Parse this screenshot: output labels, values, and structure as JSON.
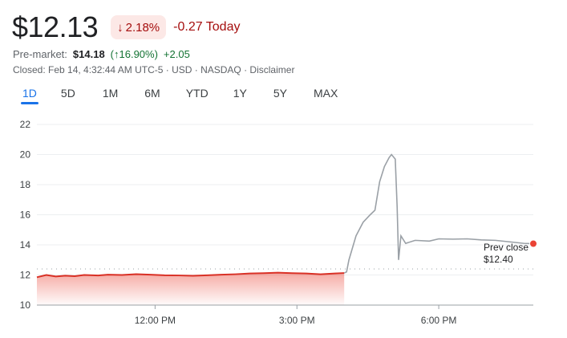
{
  "quote": {
    "price": "$12.13",
    "change_percent": "2.18%",
    "change_direction_icon": "arrow-down-icon",
    "today_change": "-0.27 Today",
    "premarket_label": "Pre-market:",
    "premarket_price": "$14.18",
    "premarket_percent": "(↑16.90%)",
    "premarket_change": "+2.05",
    "closed_info": "Closed: Feb 14, 4:32:44 AM UTC-5 · USD · NASDAQ · Disclaimer",
    "colors": {
      "down": "#a50e0e",
      "up": "#137333",
      "accent": "#1a73e8"
    }
  },
  "tabs": [
    {
      "label": "1D",
      "active": true
    },
    {
      "label": "5D"
    },
    {
      "label": "1M"
    },
    {
      "label": "6M"
    },
    {
      "label": "YTD"
    },
    {
      "label": "1Y"
    },
    {
      "label": "5Y"
    },
    {
      "label": "MAX"
    }
  ],
  "chart_data": {
    "type": "line",
    "ylim": [
      10,
      22
    ],
    "yticks": [
      "10",
      "12",
      "14",
      "16",
      "18",
      "20",
      "22"
    ],
    "xticks": [
      {
        "label": "12:00 PM",
        "hour": 12
      },
      {
        "label": "3:00 PM",
        "hour": 15
      },
      {
        "label": "6:00 PM",
        "hour": 18
      }
    ],
    "x_range_hours": [
      9.5,
      20
    ],
    "prev_close": {
      "label": "Prev close",
      "value": "$12.40",
      "y": 12.4
    },
    "series": [
      {
        "segment": "regular",
        "color": "#d93025",
        "points": [
          [
            9.5,
            11.85
          ],
          [
            9.7,
            12.0
          ],
          [
            9.9,
            11.9
          ],
          [
            10.1,
            11.95
          ],
          [
            10.3,
            11.92
          ],
          [
            10.5,
            12.0
          ],
          [
            10.8,
            11.97
          ],
          [
            11.0,
            12.02
          ],
          [
            11.3,
            12.0
          ],
          [
            11.6,
            12.05
          ],
          [
            11.9,
            12.02
          ],
          [
            12.2,
            11.98
          ],
          [
            12.5,
            11.97
          ],
          [
            12.8,
            11.95
          ],
          [
            13.1,
            11.98
          ],
          [
            13.4,
            12.02
          ],
          [
            13.7,
            12.05
          ],
          [
            14.0,
            12.1
          ],
          [
            14.3,
            12.12
          ],
          [
            14.6,
            12.15
          ],
          [
            14.9,
            12.12
          ],
          [
            15.2,
            12.1
          ],
          [
            15.5,
            12.05
          ],
          [
            15.8,
            12.1
          ],
          [
            16.0,
            12.13
          ]
        ]
      },
      {
        "segment": "after-hours",
        "color": "#9aa0a6",
        "points": [
          [
            16.0,
            12.13
          ],
          [
            16.05,
            12.2
          ],
          [
            16.1,
            13.0
          ],
          [
            16.25,
            14.6
          ],
          [
            16.4,
            15.5
          ],
          [
            16.55,
            16.0
          ],
          [
            16.65,
            16.3
          ],
          [
            16.75,
            18.2
          ],
          [
            16.85,
            19.2
          ],
          [
            16.95,
            19.8
          ],
          [
            17.0,
            20.0
          ],
          [
            17.08,
            19.7
          ],
          [
            17.12,
            16.5
          ],
          [
            17.15,
            13.0
          ],
          [
            17.2,
            14.6
          ],
          [
            17.3,
            14.1
          ],
          [
            17.5,
            14.3
          ],
          [
            17.8,
            14.25
          ],
          [
            18.0,
            14.4
          ],
          [
            18.3,
            14.38
          ],
          [
            18.6,
            14.4
          ],
          [
            18.9,
            14.33
          ],
          [
            19.2,
            14.3
          ],
          [
            19.5,
            14.2
          ],
          [
            19.8,
            14.1
          ],
          [
            20.0,
            14.08
          ]
        ]
      }
    ],
    "last_point_color": "#ea4335"
  }
}
